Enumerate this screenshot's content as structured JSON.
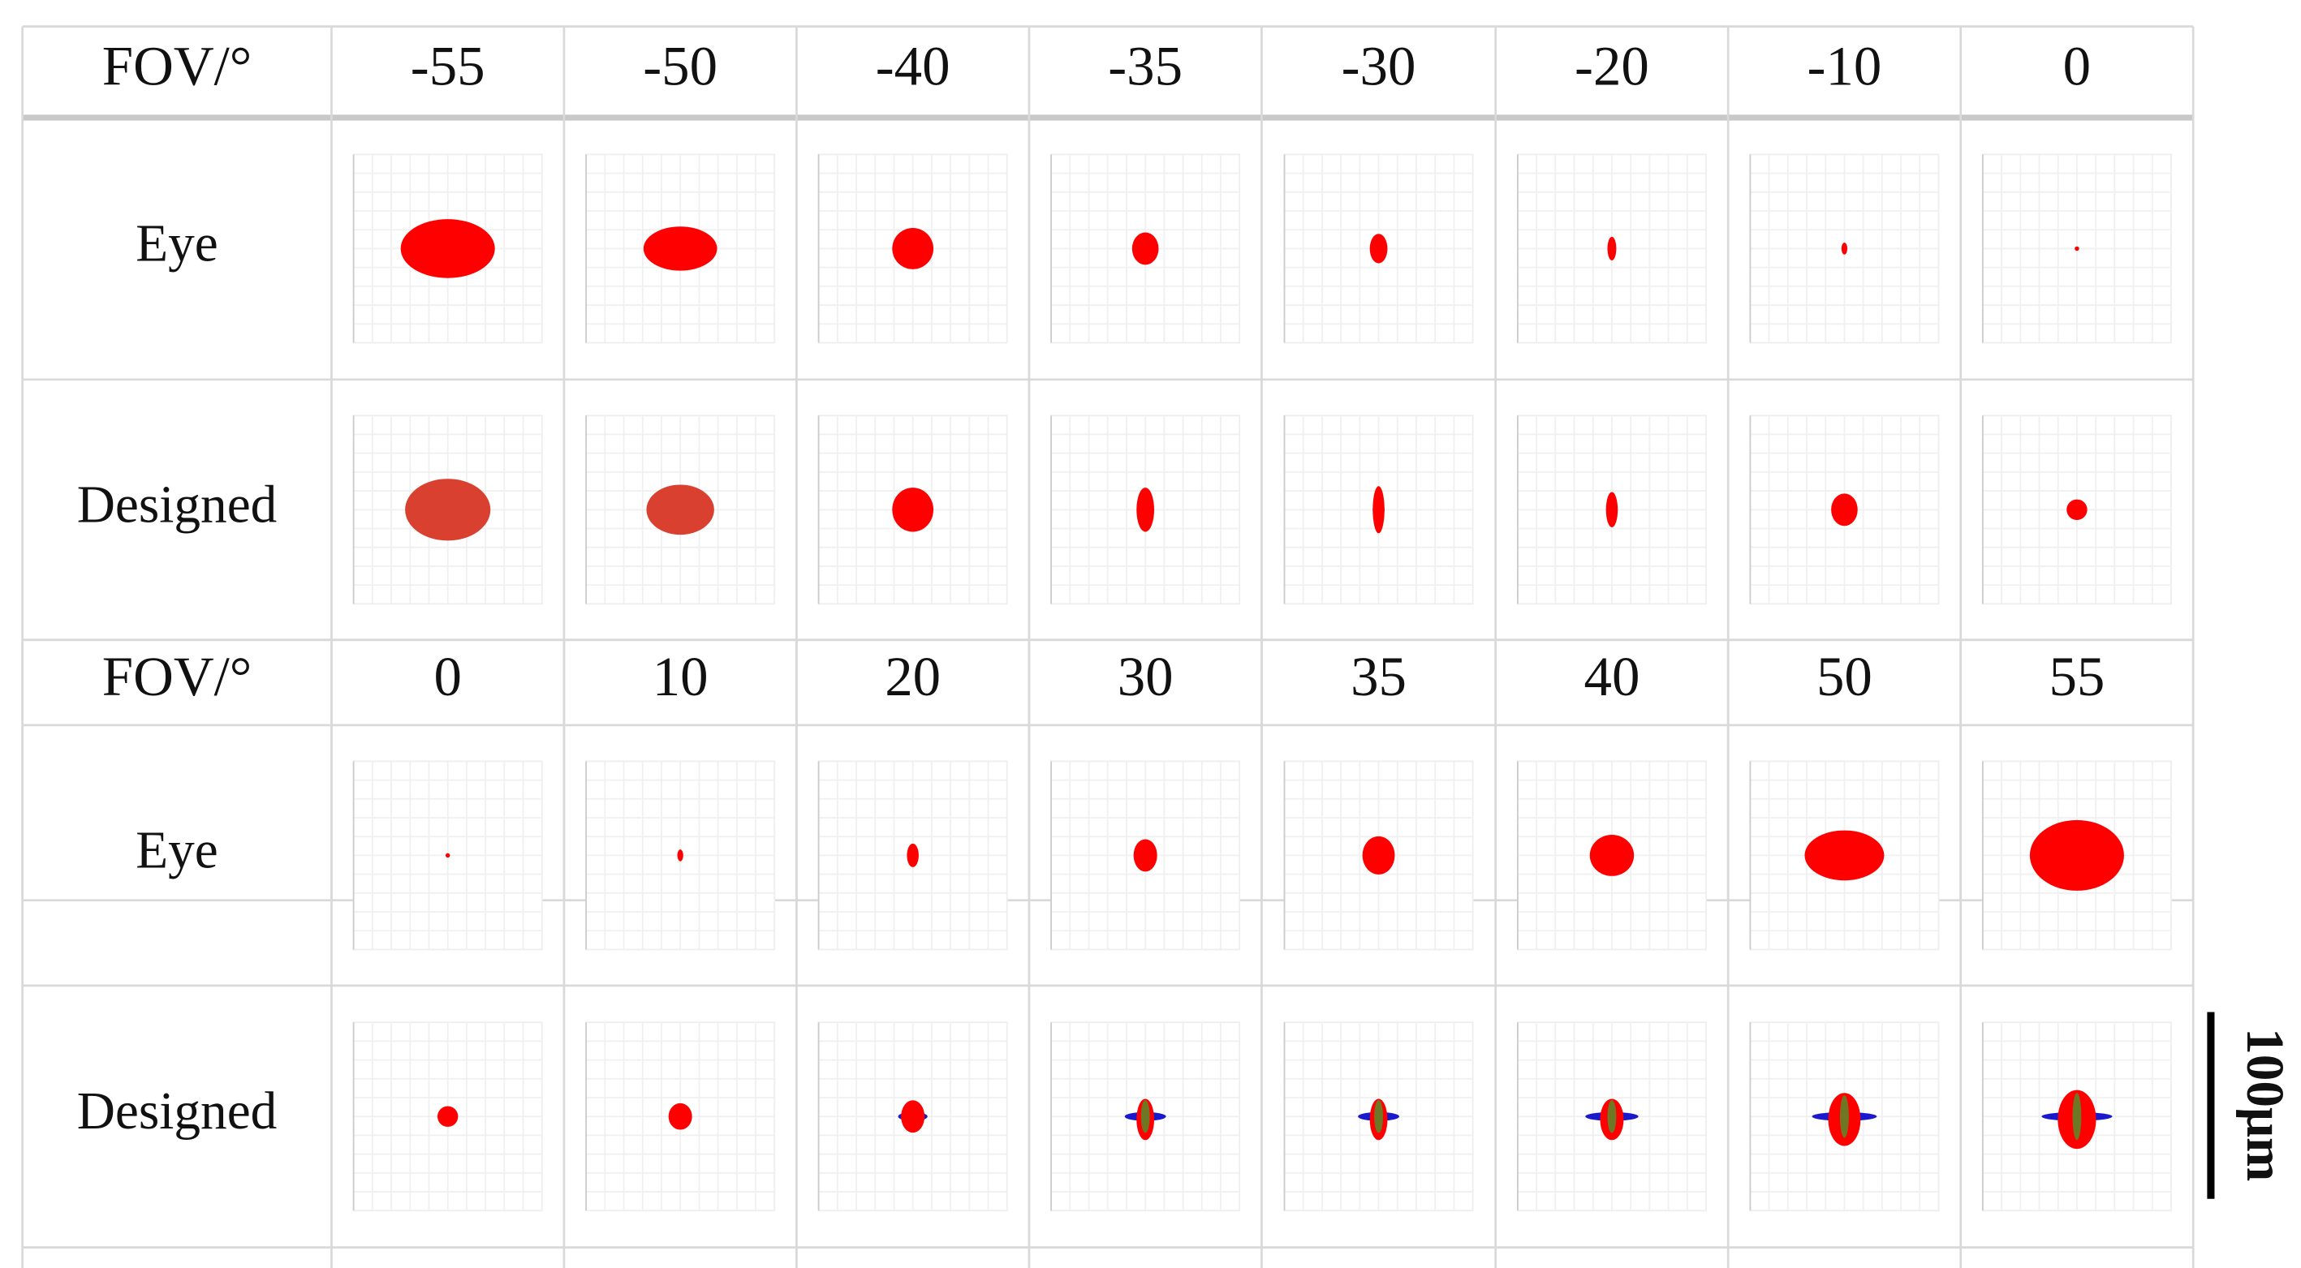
{
  "sections": [
    {
      "header": {
        "label": "FOV/°",
        "values": [
          "-55",
          "-50",
          "-40",
          "-35",
          "-30",
          "-20",
          "-10",
          "0"
        ]
      },
      "rows": [
        {
          "label": "Eye"
        },
        {
          "label": "Designed"
        }
      ]
    },
    {
      "header": {
        "label": "FOV/°",
        "values": [
          "0",
          "10",
          "20",
          "30",
          "35",
          "40",
          "50",
          "55"
        ]
      },
      "rows": [
        {
          "label": "Eye"
        },
        {
          "label": "Designed"
        }
      ]
    }
  ],
  "scale_bar": {
    "label": "100μm"
  }
}
